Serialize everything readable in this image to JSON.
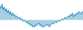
{
  "chart_data": {
    "type": "area",
    "values": [
      10,
      8,
      11,
      7,
      9,
      6,
      8,
      5,
      7,
      4,
      6,
      3,
      5,
      3,
      4,
      2,
      3,
      2,
      1,
      2,
      0,
      1,
      -1,
      0,
      -1,
      -2,
      -1,
      -3,
      -2,
      -4,
      -3,
      -5,
      -4,
      -5,
      -3,
      -4,
      -3,
      -2,
      -4,
      -3,
      -5,
      -4,
      -5,
      -4,
      -3,
      -4,
      -3,
      -5,
      -4,
      -3,
      -2,
      -3,
      -2,
      -1,
      -2,
      -1,
      0,
      -1,
      0,
      1,
      0,
      1,
      2,
      1,
      2,
      3,
      2,
      4,
      3,
      5,
      2,
      4,
      3,
      5,
      4,
      6,
      5,
      4,
      6,
      5
    ],
    "color": "#2288bb",
    "ylim": [
      -7,
      14
    ],
    "tick_labels": false
  }
}
